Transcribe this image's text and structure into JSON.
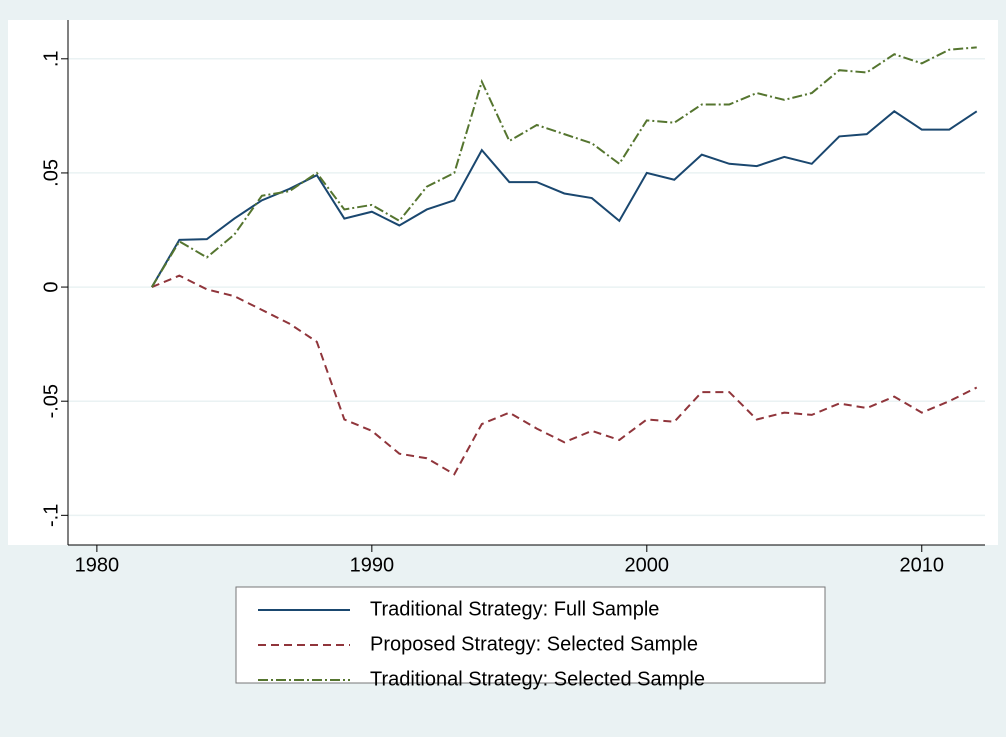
{
  "chart_data": {
    "type": "line",
    "x": [
      1982,
      1983,
      1984,
      1985,
      1986,
      1987,
      1988,
      1989,
      1990,
      1991,
      1992,
      1993,
      1994,
      1995,
      1996,
      1997,
      1998,
      1999,
      2000,
      2001,
      2002,
      2003,
      2004,
      2005,
      2006,
      2007,
      2008,
      2009,
      2010,
      2011,
      2012
    ],
    "series": [
      {
        "name": "Traditional Strategy: Full Sample",
        "color": "#1a476f",
        "dash": "none",
        "values": [
          0,
          0.0207,
          0.021,
          0.03,
          0.038,
          0.043,
          0.049,
          0.03,
          0.033,
          0.027,
          0.034,
          0.038,
          0.06,
          0.046,
          0.046,
          0.041,
          0.039,
          0.029,
          0.05,
          0.047,
          0.058,
          0.054,
          0.053,
          0.057,
          0.054,
          0.066,
          0.067,
          0.077,
          0.069,
          0.069,
          0.077
        ]
      },
      {
        "name": "Proposed Strategy: Selected Sample",
        "color": "#90353b",
        "dash": "8,5",
        "values": [
          0,
          0.005,
          -0.001,
          -0.004,
          -0.01,
          -0.016,
          -0.024,
          -0.058,
          -0.063,
          -0.073,
          -0.075,
          -0.082,
          -0.06,
          -0.055,
          -0.062,
          -0.068,
          -0.063,
          -0.067,
          -0.058,
          -0.059,
          -0.046,
          -0.046,
          -0.058,
          -0.055,
          -0.056,
          -0.051,
          -0.053,
          -0.048,
          -0.055,
          -0.05,
          -0.044
        ]
      },
      {
        "name": "Traditional Strategy: Selected Sample",
        "color": "#55752f",
        "dash": "10,3,2,3",
        "values": [
          0,
          0.02,
          0.013,
          0.023,
          0.04,
          0.042,
          0.05,
          0.034,
          0.036,
          0.029,
          0.044,
          0.05,
          0.09,
          0.064,
          0.071,
          0.067,
          0.063,
          0.054,
          0.073,
          0.072,
          0.08,
          0.08,
          0.085,
          0.082,
          0.085,
          0.095,
          0.094,
          0.102,
          0.098,
          0.104,
          0.105
        ]
      }
    ],
    "xlim": [
      1978.95,
      2012.3
    ],
    "xticks": [
      1980,
      1990,
      2000,
      2010
    ],
    "ylim": [
      -0.113,
      0.117
    ],
    "yticks": [
      {
        "value": -0.1,
        "label": "-.1"
      },
      {
        "value": -0.05,
        "label": "-.05"
      },
      0,
      {
        "value": 0.05,
        "label": ".05"
      },
      {
        "value": 0.1,
        "label": ".1"
      }
    ],
    "grid": true,
    "legend": "bottom"
  }
}
